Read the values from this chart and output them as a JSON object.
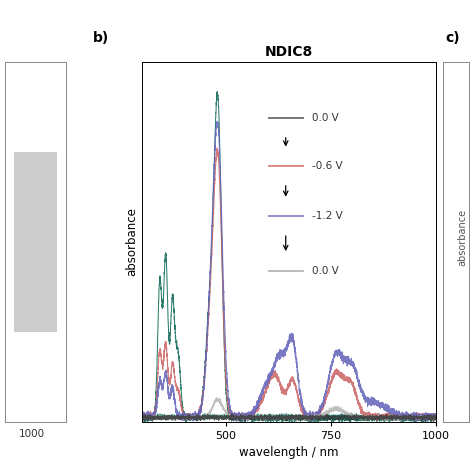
{
  "title": "NDIC8",
  "xlabel": "wavelength / nm",
  "ylabel": "absorbance",
  "label_b": "b)",
  "label_c": "c)",
  "xmin": 300,
  "xmax": 1000,
  "legend_entries": [
    "0.0 V",
    "-0.6 V",
    "-1.2 V",
    "0.0 V"
  ],
  "legend_line_colors": [
    "#777777",
    "#e08888",
    "#9090cc",
    "#bbbbbb"
  ],
  "line_colors": {
    "neutral_dark": "#1a7060",
    "neutral_flat": "#2a9080",
    "reduced_06": "#cc6666",
    "reduced_12": "#6666bb",
    "return_00": "#aaaaaa",
    "black_baseline": "#333333"
  },
  "background": "#ffffff",
  "plot_bg": "#ffffff",
  "ylim": [
    0,
    1.0
  ],
  "xticks": [
    500,
    750,
    1000
  ]
}
